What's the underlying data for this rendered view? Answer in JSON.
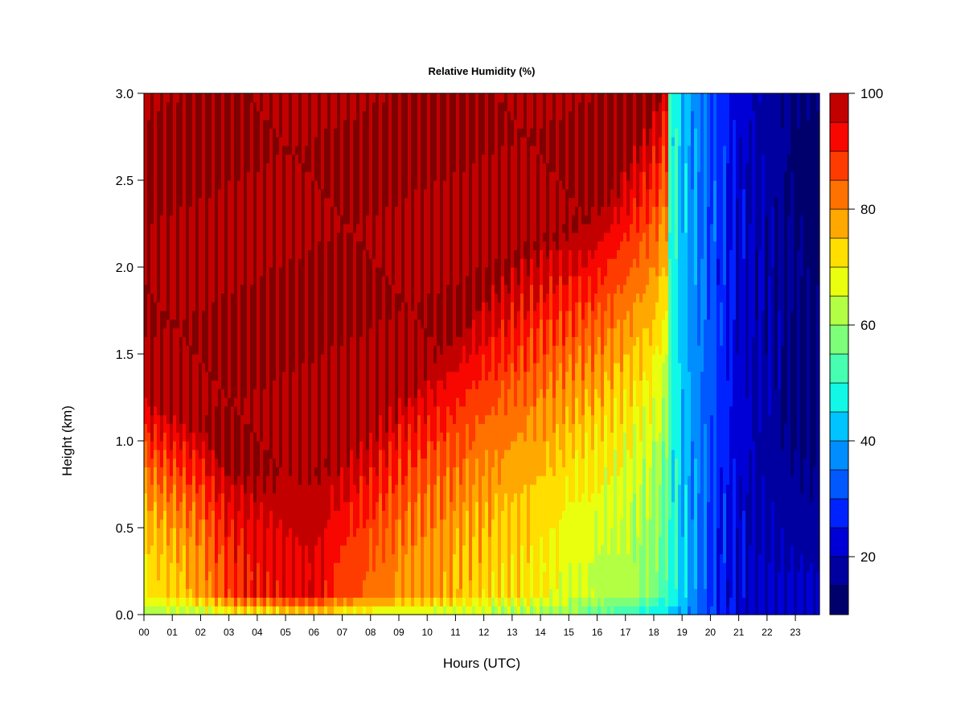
{
  "chart_data": {
    "type": "heatmap",
    "title": "Relative Humidity (%)",
    "xlabel": "Hours (UTC)",
    "ylabel": "Height (km)",
    "xlim": [
      0,
      23.85
    ],
    "ylim": [
      0,
      3.0
    ],
    "x_ticks": [
      0,
      1,
      2,
      3,
      4,
      5,
      6,
      7,
      8,
      9,
      10,
      11,
      12,
      13,
      14,
      15,
      16,
      17,
      18,
      19,
      20,
      21,
      22,
      23
    ],
    "x_tick_labels": [
      "00",
      "01",
      "02",
      "03",
      "04",
      "05",
      "06",
      "07",
      "08",
      "09",
      "10",
      "11",
      "12",
      "13",
      "14",
      "15",
      "16",
      "17",
      "18",
      "19",
      "20",
      "21",
      "22",
      "23"
    ],
    "y_ticks": [
      0.0,
      0.5,
      1.0,
      1.5,
      2.0,
      2.5,
      3.0
    ],
    "y_tick_labels": [
      "0.0",
      "0.5",
      "1.0",
      "1.5",
      "2.0",
      "2.5",
      "3.0"
    ],
    "colorbar": {
      "levels": [
        10,
        15,
        20,
        25,
        30,
        35,
        40,
        45,
        50,
        55,
        60,
        65,
        70,
        75,
        80,
        85,
        90,
        95,
        100
      ],
      "colors": [
        "#00006d",
        "#0000a0",
        "#0000d6",
        "#0022ff",
        "#0058ff",
        "#008eff",
        "#00c4ff",
        "#11f8e6",
        "#47ffb0",
        "#7dff7a",
        "#b3ff44",
        "#e9ff0e",
        "#ffde00",
        "#ffa800",
        "#ff7200",
        "#ff3c00",
        "#f80600",
        "#c20000",
        "#7f0000"
      ],
      "tick_values": [
        20,
        40,
        60,
        80,
        100
      ],
      "tick_labels": [
        "20",
        "40",
        "60",
        "80",
        "100"
      ]
    },
    "grid": false,
    "field_hourly": {
      "hours": [
        0,
        1,
        2,
        3,
        4,
        5,
        6,
        7,
        8,
        9,
        10,
        11,
        12,
        13,
        14,
        15,
        16,
        17,
        18,
        19,
        20,
        21,
        22,
        23,
        23.85
      ],
      "surface_rh": [
        60,
        62,
        62,
        66,
        68,
        70,
        72,
        68,
        66,
        65,
        64,
        63,
        62,
        61,
        60,
        58,
        54,
        50,
        46,
        40,
        30,
        22,
        20,
        20,
        20
      ],
      "low_level_rh": [
        70,
        74,
        78,
        88,
        92,
        94,
        95,
        88,
        84,
        80,
        78,
        76,
        74,
        72,
        70,
        66,
        64,
        62,
        58,
        44,
        28,
        22,
        20,
        20,
        20
      ],
      "saturated_base_km": [
        1.3,
        1.2,
        1.1,
        0.85,
        0.8,
        0.8,
        0.8,
        0.95,
        1.1,
        1.3,
        1.45,
        1.6,
        1.85,
        2.0,
        2.15,
        2.2,
        2.3,
        2.6,
        2.9,
        3.5,
        3.5,
        3.5,
        3.5,
        3.5,
        3.5
      ],
      "upper_rh": [
        98,
        100,
        100,
        100,
        100,
        100,
        100,
        100,
        100,
        100,
        100,
        100,
        100,
        100,
        100,
        100,
        94,
        82,
        66,
        42,
        32,
        22,
        18,
        14,
        12
      ]
    }
  }
}
